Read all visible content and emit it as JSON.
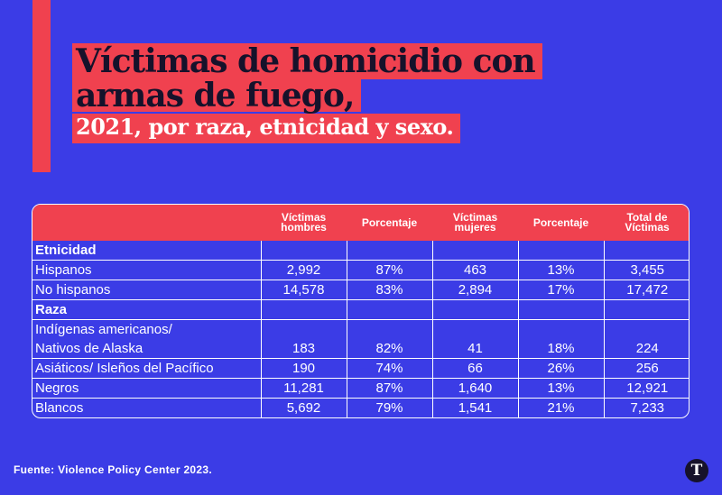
{
  "title": {
    "line1": "Víctimas de homicidio con",
    "line2": "armas de fuego,",
    "line3": "2021, por raza, etnicidad y sexo."
  },
  "table": {
    "headers": [
      "",
      "Víctimas hombres",
      "Porcentaje",
      "Víctimas mujeres",
      "Porcentaje",
      "Total de Víctimas"
    ],
    "header_lines": {
      "men": [
        "Víctimas",
        "hombres"
      ],
      "pct1": "Porcentaje",
      "women": [
        "Víctimas",
        "mujeres"
      ],
      "pct2": "Porcentaje",
      "total": [
        "Total de",
        "Víctimas"
      ]
    },
    "sections": {
      "ethnicity": "Etnicidad",
      "race": "Raza"
    },
    "rows": {
      "hispanos": {
        "label": "Hispanos",
        "men": "2,992",
        "pct_men": "87%",
        "women": "463",
        "pct_women": "13%",
        "total": "3,455"
      },
      "no_hispanos": {
        "label": "No hispanos",
        "men": "14,578",
        "pct_men": "83%",
        "women": "2,894",
        "pct_women": "17%",
        "total": "17,472"
      },
      "indigenas": {
        "label_line1": "Indígenas americanos/",
        "label_line2": "Nativos de Alaska",
        "men": "183",
        "pct_men": "82%",
        "women": "41",
        "pct_women": "18%",
        "total": "224"
      },
      "asiaticos": {
        "label": "Asiáticos/ Isleños del Pacífico",
        "men": "190",
        "pct_men": "74%",
        "women": "66",
        "pct_women": "26%",
        "total": "256"
      },
      "negros": {
        "label": "Negros",
        "men": "11,281",
        "pct_men": "87%",
        "women": "1,640",
        "pct_women": "13%",
        "total": "12,921"
      },
      "blancos": {
        "label": "Blancos",
        "men": "5,692",
        "pct_men": "79%",
        "women": "1,541",
        "pct_women": "21%",
        "total": "7,233"
      }
    }
  },
  "source": "Fuente: Violence Policy Center 2023.",
  "logo_letter": "T",
  "colors": {
    "background": "#3b3ce6",
    "accent": "#f0414f",
    "dark": "#16122b"
  }
}
